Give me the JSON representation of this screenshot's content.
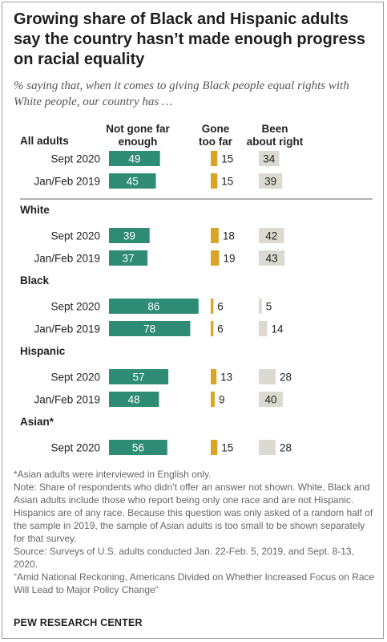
{
  "title": "Growing share of Black and Hispanic adults say the country hasn’t made enough progress on racial equality",
  "subtitle": "% saying that, when it comes to giving Black people equal rights with White people, our country has …",
  "chart_data": {
    "type": "bar",
    "series": [
      {
        "name": "Not gone far enough",
        "color": "#2e8b74"
      },
      {
        "name": "Gone too far",
        "color": "#d9a526"
      },
      {
        "name": "Been about right",
        "color": "#dcdad0"
      }
    ],
    "groups": [
      {
        "label": "All adults",
        "rows": [
          {
            "label": "Sept 2020",
            "values": [
              49,
              15,
              34
            ]
          },
          {
            "label": "Jan/Feb 2019",
            "values": [
              45,
              15,
              39
            ]
          }
        ]
      },
      {
        "label": "White",
        "rows": [
          {
            "label": "Sept 2020",
            "values": [
              39,
              18,
              42
            ]
          },
          {
            "label": "Jan/Feb 2019",
            "values": [
              37,
              19,
              43
            ]
          }
        ]
      },
      {
        "label": "Black",
        "rows": [
          {
            "label": "Sept 2020",
            "values": [
              86,
              6,
              5
            ]
          },
          {
            "label": "Jan/Feb 2019",
            "values": [
              78,
              6,
              14
            ]
          }
        ]
      },
      {
        "label": "Hispanic",
        "rows": [
          {
            "label": "Sept 2020",
            "values": [
              57,
              13,
              28
            ]
          },
          {
            "label": "Jan/Feb 2019",
            "values": [
              48,
              9,
              40
            ]
          }
        ]
      },
      {
        "label": "Asian*",
        "rows": [
          {
            "label": "Sept 2020",
            "values": [
              56,
              15,
              28
            ]
          }
        ]
      }
    ]
  },
  "notes": [
    "*Asian adults were interviewed in English only.",
    "Note: Share of respondents who didn’t offer an answer not shown. White, Black and Asian adults include those who report being only one race and are not Hispanic. Hispanics are of any race. Because this question was only asked of a random half of the sample in 2019, the sample of Asian adults is too small to be shown separately for that survey.",
    "Source: Surveys of U.S. adults conducted Jan. 22-Feb. 5, 2019, and Sept. 8-13, 2020.",
    "“Amid National Reckoning, Americans Divided on Whether Increased Focus on Race Will Lead to Major Policy Change”"
  ],
  "source_brand": "PEW RESEARCH CENTER"
}
